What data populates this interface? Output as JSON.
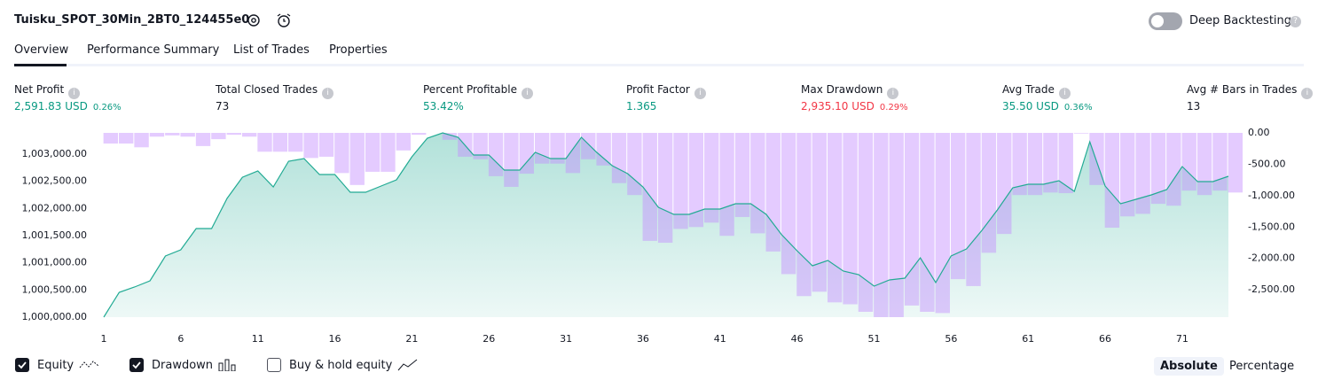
{
  "header": {
    "title": "Tuisku_SPOT_30Min_2BT0_124455e0",
    "toggle_label": "Deep Backtesting"
  },
  "tabs": [
    "Overview",
    "Performance Summary",
    "List of Trades",
    "Properties"
  ],
  "metrics": [
    {
      "label": "Net Profit",
      "value": "2,591.83 USD",
      "percent": "0.26%",
      "color": "#089981"
    },
    {
      "label": "Total Closed Trades",
      "value": "73",
      "color": "#131722"
    },
    {
      "label": "Percent Profitable",
      "value": "53.42%",
      "color": "#089981"
    },
    {
      "label": "Profit Factor",
      "value": "1.365",
      "color": "#089981"
    },
    {
      "label": "Max Drawdown",
      "value": "2,935.10 USD",
      "percent": "0.29%",
      "color": "#f23645"
    },
    {
      "label": "Avg Trade",
      "value": "35.50 USD",
      "percent": "0.36%",
      "color": "#089981"
    },
    {
      "label": "Avg # Bars in Trades",
      "value": "13",
      "color": "#131722"
    }
  ],
  "chart_data": {
    "type": "line",
    "x": [
      1,
      2,
      3,
      4,
      5,
      6,
      7,
      8,
      9,
      10,
      11,
      12,
      13,
      14,
      15,
      16,
      17,
      18,
      19,
      20,
      21,
      22,
      23,
      24,
      25,
      26,
      27,
      28,
      29,
      30,
      31,
      32,
      33,
      34,
      35,
      36,
      37,
      38,
      39,
      40,
      41,
      42,
      43,
      44,
      45,
      46,
      47,
      48,
      49,
      50,
      51,
      52,
      53,
      54,
      55,
      56,
      57,
      58,
      59,
      60,
      61,
      62,
      63,
      64,
      65,
      66,
      67,
      68,
      69,
      70,
      71,
      72,
      73,
      74
    ],
    "series": [
      {
        "name": "Equity",
        "type": "area",
        "color": "#22ab94",
        "values": [
          1000000,
          1000456,
          1000554,
          1000668,
          1001125,
          1001239,
          1001630,
          1001630,
          1002184,
          1002575,
          1002690,
          1002396,
          1002869,
          1002918,
          1002625,
          1002625,
          1002299,
          1002299,
          1002413,
          1002527,
          1002951,
          1003293,
          1003391,
          1003309,
          1002983,
          1002983,
          1002706,
          1002706,
          1003032,
          1002918,
          1002918,
          1003309,
          1003032,
          1002788,
          1002641,
          1002396,
          1002021,
          1001891,
          1001891,
          1001989,
          1001989,
          1002086,
          1002086,
          1001891,
          1001516,
          1001223,
          1000945,
          1001043,
          1000848,
          1000782,
          1000571,
          1000685,
          1000717,
          1001092,
          1000636,
          1001125,
          1001255,
          1001597,
          1001972,
          1002380,
          1002445,
          1002445,
          1002510,
          1002315,
          1003228,
          1002413,
          1002086,
          1002168,
          1002249,
          1002347,
          1002771,
          1002494,
          1002494,
          1002592
        ]
      },
      {
        "name": "Drawdown",
        "type": "bar",
        "axis": "y2",
        "color": "#c38cff",
        "values": [
          -170,
          -170,
          -230,
          -60,
          -40,
          -60,
          -210,
          -100,
          -30,
          -60,
          -300,
          -300,
          -300,
          -400,
          -380,
          -640,
          -830,
          -620,
          -620,
          -280,
          -30,
          0,
          -110,
          -380,
          -420,
          -690,
          -860,
          -650,
          -490,
          -490,
          -640,
          -420,
          -520,
          -800,
          -990,
          -1720,
          -1750,
          -1530,
          -1500,
          -1430,
          -1640,
          -1340,
          -1600,
          -1890,
          -2250,
          -2600,
          -2530,
          -2700,
          -2730,
          -2850,
          -2935,
          -2935,
          -2750,
          -2850,
          -2870,
          -2330,
          -2440,
          -1910,
          -1610,
          -990,
          -990,
          -950,
          -960,
          -10,
          -830,
          -1510,
          -1330,
          -1290,
          -1130,
          -1160,
          -920,
          -990,
          -920,
          -950
        ]
      }
    ],
    "xlim": [
      1,
      74
    ],
    "xticks": [
      1,
      6,
      11,
      16,
      21,
      26,
      31,
      36,
      41,
      46,
      51,
      56,
      61,
      66,
      71
    ],
    "ylim": [
      1000000,
      1003391
    ],
    "yticks": [
      {
        "value": 1000000,
        "label": "1,000,000.00"
      },
      {
        "value": 1000500,
        "label": "1,000,500.00"
      },
      {
        "value": 1001000,
        "label": "1,001,000.00"
      },
      {
        "value": 1001500,
        "label": "1,001,500.00"
      },
      {
        "value": 1002000,
        "label": "1,002,000.00"
      },
      {
        "value": 1002500,
        "label": "1,002,500.00"
      },
      {
        "value": 1003000,
        "label": "1,003,000.00"
      }
    ],
    "y2lim": [
      -2935,
      0
    ],
    "y2ticks": [
      {
        "value": 0,
        "label": "0.00"
      },
      {
        "value": -500,
        "label": "-500.00"
      },
      {
        "value": -1000,
        "label": "-1,000.00"
      },
      {
        "value": -1500,
        "label": "-1,500.00"
      },
      {
        "value": -2000,
        "label": "-2,000.00"
      },
      {
        "value": -2500,
        "label": "-2,500.00"
      }
    ]
  },
  "legend": [
    {
      "label": "Equity",
      "checked": true
    },
    {
      "label": "Drawdown",
      "checked": true
    },
    {
      "label": "Buy & hold equity",
      "checked": false
    }
  ],
  "modes": [
    {
      "label": "Absolute",
      "selected": true
    },
    {
      "label": "Percentage",
      "selected": false
    }
  ]
}
